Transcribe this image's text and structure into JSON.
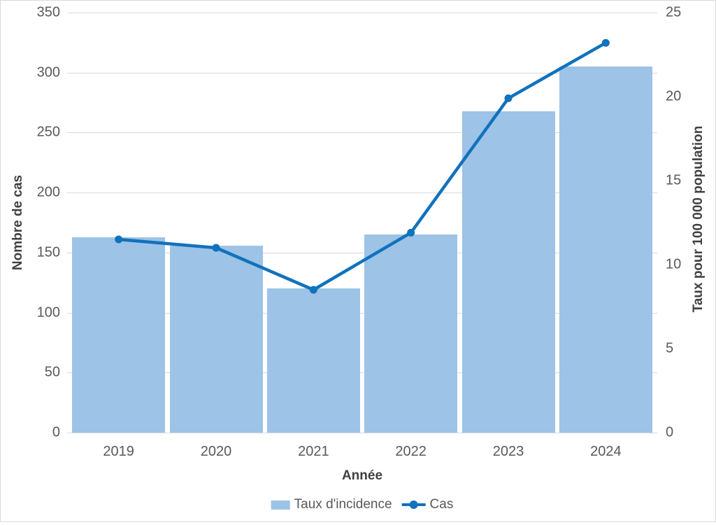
{
  "chart_data": {
    "type": "combo",
    "categories": [
      "2019",
      "2020",
      "2021",
      "2022",
      "2023",
      "2024"
    ],
    "series": [
      {
        "name": "Taux d'incidence",
        "render": "bar",
        "axis": "left",
        "color": "#9dc3e6",
        "values": [
          163,
          156,
          120,
          165,
          268,
          305
        ]
      },
      {
        "name": "Cas",
        "render": "line",
        "axis": "right",
        "color": "#1172bd",
        "values": [
          11.5,
          11.0,
          8.5,
          11.9,
          19.9,
          23.2
        ]
      }
    ],
    "title": "",
    "xlabel": "Année",
    "left_axis": {
      "title": "Nombre de cas",
      "min": 0,
      "max": 350,
      "step": 50,
      "ticks": [
        0,
        50,
        100,
        150,
        200,
        250,
        300,
        350
      ]
    },
    "right_axis": {
      "title": "Taux pour 100 000 population",
      "min": 0,
      "max": 25,
      "step": 5,
      "ticks": [
        0,
        5,
        10,
        15,
        20,
        25
      ]
    },
    "grid": true,
    "legend_position": "bottom",
    "colors": {
      "bar_fill": "#9dc3e6",
      "line_stroke": "#1172bd",
      "gridline": "#d9d9d9",
      "tick_label": "#595959",
      "axis_title": "#404040",
      "chart_border": "#d9d9d9",
      "background": "#ffffff"
    }
  }
}
